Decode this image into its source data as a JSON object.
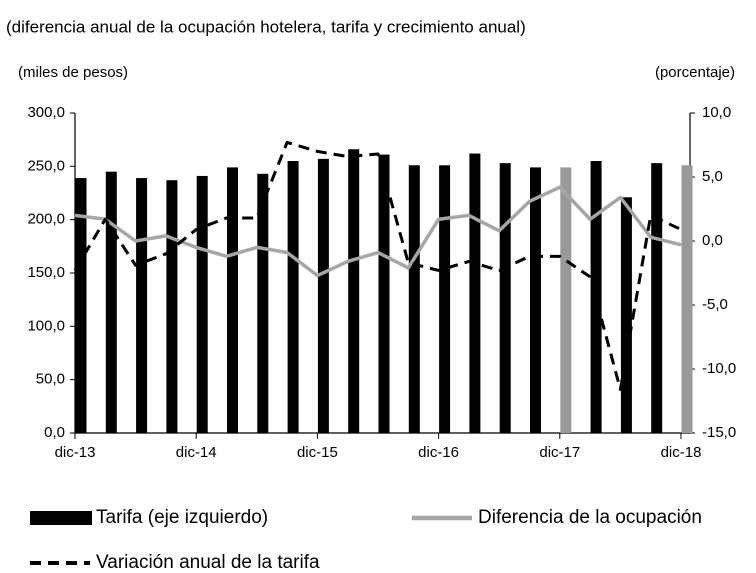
{
  "chart_data": {
    "type": "bar-line",
    "title": "(diferencia anual de la ocupación hotelera, tarifa y crecimiento anual)",
    "ylabel": "(miles de pesos)",
    "y2label": "(porcentaje)",
    "categories": [
      "dic-13",
      null,
      null,
      null,
      "dic-14",
      null,
      null,
      null,
      "dic-15",
      null,
      null,
      null,
      "dic-16",
      null,
      null,
      null,
      "dic-17",
      null,
      null,
      null,
      "dic-18"
    ],
    "series": [
      {
        "name": "Tarifa (eje izquierdo)",
        "type": "bar",
        "color": "#000000",
        "point_colors": [
          "#000000",
          "#000000",
          "#000000",
          "#000000",
          "#000000",
          "#000000",
          "#000000",
          "#000000",
          "#000000",
          "#000000",
          "#000000",
          "#000000",
          "#000000",
          "#000000",
          "#000000",
          "#000000",
          "#999999",
          "#000000",
          "#000000",
          "#000000",
          "#999999"
        ],
        "values": [
          239,
          245,
          239,
          237,
          241,
          249,
          243,
          255,
          257,
          266,
          261,
          251,
          251,
          262,
          253,
          249,
          249,
          255,
          221,
          253,
          251
        ]
      },
      {
        "name": "Diferencia de la ocupación",
        "type": "line",
        "axis": "y2",
        "color": "#a6a6a6",
        "dashed": false,
        "values": [
          2.0,
          1.7,
          0.0,
          0.4,
          -0.5,
          -1.2,
          -0.5,
          -0.9,
          -2.7,
          -1.6,
          -0.9,
          -2.1,
          1.7,
          2.0,
          0.8,
          3.1,
          4.2,
          1.7,
          3.4,
          0.3,
          -0.3
        ]
      },
      {
        "name": "Variación anual de la tarifa",
        "type": "line",
        "axis": "y2",
        "color": "#000000",
        "dashed": true,
        "values": [
          -2.3,
          1.7,
          -1.9,
          -1.0,
          0.9,
          1.8,
          1.8,
          7.7,
          7.0,
          6.6,
          6.8,
          -1.7,
          -2.3,
          -1.6,
          -2.3,
          -1.2,
          -1.2,
          -2.8,
          -11.6,
          2.0,
          0.9
        ]
      }
    ],
    "ylim": [
      0,
      300
    ],
    "yticks": [
      {
        "value": 0,
        "label": "0,0"
      },
      {
        "value": 50,
        "label": "50,0"
      },
      {
        "value": 100,
        "label": "100,0"
      },
      {
        "value": 150,
        "label": "150,0"
      },
      {
        "value": 200,
        "label": "200,0"
      },
      {
        "value": 250,
        "label": "250,0"
      },
      {
        "value": 300,
        "label": "300,0"
      }
    ],
    "y2lim": [
      -15,
      10
    ],
    "y2ticks": [
      {
        "value": -15,
        "label": "-15,0"
      },
      {
        "value": -10,
        "label": "-10,0"
      },
      {
        "value": -5,
        "label": "-5,0"
      },
      {
        "value": 0,
        "label": "0,0"
      },
      {
        "value": 5,
        "label": "5,0"
      },
      {
        "value": 10,
        "label": "10,0"
      }
    ],
    "grid": false
  }
}
